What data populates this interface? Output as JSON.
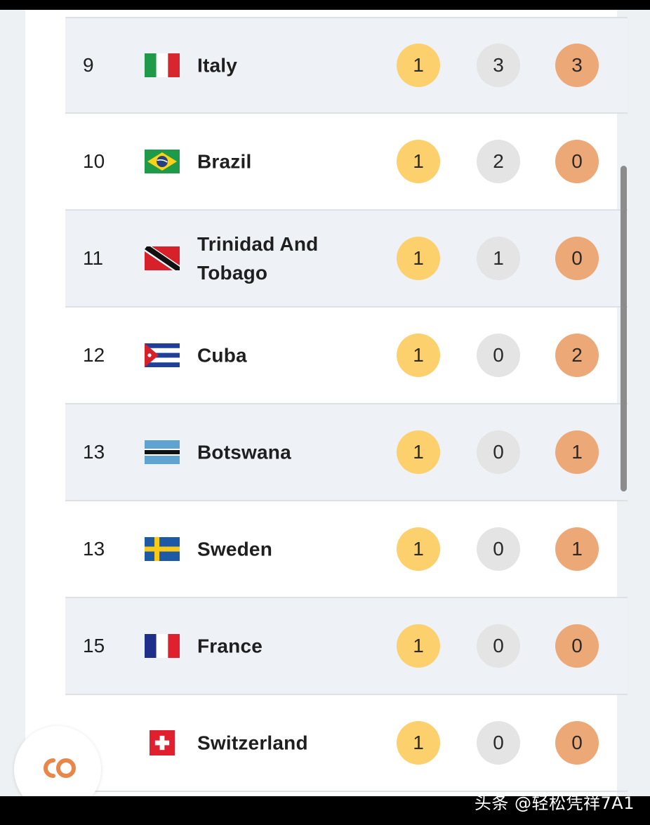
{
  "colors": {
    "gold": "#fcd06d",
    "silver": "#e4e4e4",
    "bronze": "#eda877",
    "row_alt": "#eef1f5",
    "fab_logo": "#e8874a"
  },
  "rows": [
    {
      "rank": "9",
      "country": "Italy",
      "flag": "italy-flag-icon",
      "gold": 1,
      "silver": 3,
      "bronze": 3
    },
    {
      "rank": "10",
      "country": "Brazil",
      "flag": "brazil-flag-icon",
      "gold": 1,
      "silver": 2,
      "bronze": 0
    },
    {
      "rank": "11",
      "country": "Trinidad And Tobago",
      "flag": "trinidad-and-tobago-flag-icon",
      "gold": 1,
      "silver": 1,
      "bronze": 0
    },
    {
      "rank": "12",
      "country": "Cuba",
      "flag": "cuba-flag-icon",
      "gold": 1,
      "silver": 0,
      "bronze": 2
    },
    {
      "rank": "13",
      "country": "Botswana",
      "flag": "botswana-flag-icon",
      "gold": 1,
      "silver": 0,
      "bronze": 1
    },
    {
      "rank": "13",
      "country": "Sweden",
      "flag": "sweden-flag-icon",
      "gold": 1,
      "silver": 0,
      "bronze": 1
    },
    {
      "rank": "15",
      "country": "France",
      "flag": "france-flag-icon",
      "gold": 1,
      "silver": 0,
      "bronze": 0
    },
    {
      "rank": "",
      "country": "Switzerland",
      "flag": "switzerland-flag-icon",
      "gold": 1,
      "silver": 0,
      "bronze": 0
    }
  ],
  "fab": {
    "icon": "co-logo-icon"
  },
  "watermark": "头条 @轻松凭祥7A1"
}
